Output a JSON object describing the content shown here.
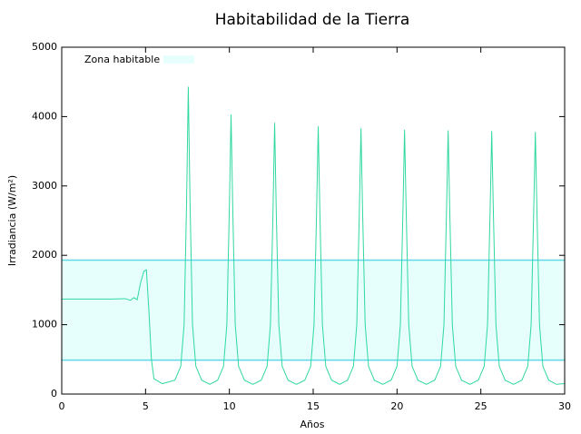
{
  "chart_data": {
    "type": "line",
    "title": "Habitabilidad de la Tierra",
    "x_label": "Años",
    "y_label": "Irradiancia (W/m²)",
    "xlim": [
      0,
      30
    ],
    "xticks": [
      0,
      5,
      10,
      15,
      20,
      25,
      30
    ],
    "ylim": [
      0,
      5000
    ],
    "yticks": [
      0,
      1000,
      2000,
      3000,
      4000,
      5000
    ],
    "legend": "top-left",
    "band": {
      "name": "Zona habitable",
      "color": "#e6fffc",
      "edge_color": "#5fd8e8",
      "values": [
        490,
        1930
      ]
    },
    "series": [
      {
        "color": "#30d8a0",
        "x": [
          0,
          1,
          2,
          3,
          3.8,
          4.1,
          4.3,
          4.5,
          4.7,
          4.9,
          5.05,
          5.2,
          5.35,
          5.5,
          6.0,
          6.75,
          7.1,
          7.3,
          7.45,
          7.55,
          7.65,
          7.8,
          8.0,
          8.35,
          8.83,
          9.3,
          9.65,
          9.85,
          10.0,
          10.1,
          10.2,
          10.35,
          10.55,
          10.9,
          11.4,
          11.9,
          12.25,
          12.45,
          12.6,
          12.7,
          12.8,
          12.95,
          13.15,
          13.5,
          14.0,
          14.5,
          14.85,
          15.05,
          15.2,
          15.3,
          15.4,
          15.55,
          15.75,
          16.1,
          16.58,
          17.05,
          17.4,
          17.6,
          17.75,
          17.85,
          17.95,
          18.1,
          18.3,
          18.65,
          19.15,
          19.65,
          20.0,
          20.2,
          20.35,
          20.45,
          20.55,
          20.7,
          20.9,
          21.25,
          21.75,
          22.25,
          22.6,
          22.8,
          22.95,
          23.05,
          23.15,
          23.3,
          23.5,
          23.85,
          24.35,
          24.85,
          25.2,
          25.4,
          25.55,
          25.65,
          25.75,
          25.9,
          26.1,
          26.45,
          26.95,
          27.45,
          27.8,
          28.0,
          28.15,
          28.25,
          28.35,
          28.5,
          28.7,
          29.05,
          29.5,
          30
        ],
        "values": [
          1370,
          1370,
          1370,
          1370,
          1375,
          1350,
          1390,
          1360,
          1600,
          1770,
          1790,
          1200,
          500,
          220,
          150,
          200,
          400,
          1000,
          2800,
          4430,
          2800,
          1000,
          400,
          200,
          140,
          200,
          400,
          1000,
          2700,
          4030,
          2700,
          1000,
          400,
          200,
          140,
          200,
          400,
          1000,
          2600,
          3910,
          2600,
          1000,
          400,
          200,
          140,
          200,
          400,
          1000,
          2600,
          3860,
          2600,
          1000,
          400,
          200,
          140,
          200,
          400,
          1000,
          2600,
          3830,
          2600,
          1000,
          400,
          200,
          140,
          200,
          400,
          1000,
          2600,
          3810,
          2600,
          1000,
          400,
          200,
          140,
          200,
          400,
          1000,
          2600,
          3800,
          2600,
          1000,
          400,
          200,
          140,
          200,
          400,
          1000,
          2600,
          3790,
          2600,
          1000,
          400,
          200,
          140,
          200,
          400,
          1000,
          2600,
          3780,
          2600,
          1000,
          400,
          200,
          140,
          150
        ]
      }
    ]
  }
}
